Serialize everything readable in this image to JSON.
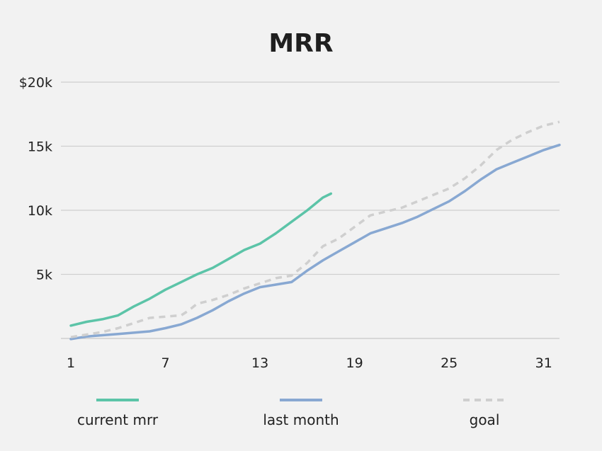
{
  "chart_data": {
    "type": "line",
    "title": "MRR",
    "xlabel": "",
    "ylabel": "",
    "xlim": [
      1,
      32
    ],
    "ylim": [
      0,
      20000
    ],
    "x_ticks": [
      {
        "value": 1,
        "label": "1"
      },
      {
        "value": 7,
        "label": "7"
      },
      {
        "value": 13,
        "label": "13"
      },
      {
        "value": 19,
        "label": "19"
      },
      {
        "value": 25,
        "label": "25"
      },
      {
        "value": 31,
        "label": "31"
      }
    ],
    "y_ticks": [
      {
        "value": 5000,
        "label": "5k"
      },
      {
        "value": 10000,
        "label": "10k"
      },
      {
        "value": 15000,
        "label": "15k"
      },
      {
        "value": 20000,
        "label": "$20k"
      }
    ],
    "grid": true,
    "legend_position": "bottom",
    "series": [
      {
        "name": "current mrr",
        "color": "#5cc4a8",
        "dashed": false,
        "x": [
          1,
          2,
          3,
          4,
          5,
          6,
          7,
          8,
          9,
          10,
          11,
          12,
          13,
          14,
          15,
          16,
          17,
          17.5
        ],
        "values": [
          1000,
          1300,
          1500,
          1800,
          2500,
          3100,
          3800,
          4400,
          5000,
          5500,
          6200,
          6900,
          7400,
          8200,
          9100,
          10000,
          11000,
          11300
        ]
      },
      {
        "name": "last month",
        "color": "#88a8d2",
        "dashed": false,
        "x": [
          1,
          2,
          3,
          4,
          5,
          6,
          7,
          8,
          9,
          10,
          11,
          12,
          13,
          14,
          15,
          16,
          17,
          18,
          19,
          20,
          21,
          22,
          23,
          24,
          25,
          26,
          27,
          28,
          29,
          30,
          31,
          32
        ],
        "values": [
          -50,
          150,
          250,
          350,
          450,
          550,
          800,
          1100,
          1600,
          2200,
          2900,
          3500,
          4000,
          4200,
          4400,
          5300,
          6100,
          6800,
          7500,
          8200,
          8600,
          9000,
          9500,
          10100,
          10700,
          11500,
          12400,
          13200,
          13700,
          14200,
          14700,
          15100
        ]
      },
      {
        "name": "goal",
        "color": "#cfcfcf",
        "dashed": true,
        "x": [
          1,
          2,
          3,
          4,
          5,
          6,
          7,
          8,
          8.5,
          9,
          10,
          11,
          12,
          13,
          14,
          15,
          16,
          17,
          18,
          19,
          20,
          21,
          22,
          23,
          24,
          25,
          26,
          27,
          28,
          29,
          30,
          31,
          32
        ],
        "values": [
          100,
          300,
          500,
          800,
          1200,
          1600,
          1700,
          1800,
          2200,
          2700,
          3000,
          3400,
          3900,
          4300,
          4700,
          4900,
          5900,
          7200,
          7800,
          8700,
          9600,
          9900,
          10200,
          10700,
          11200,
          11700,
          12500,
          13500,
          14700,
          15500,
          16100,
          16600,
          16900
        ]
      }
    ]
  }
}
